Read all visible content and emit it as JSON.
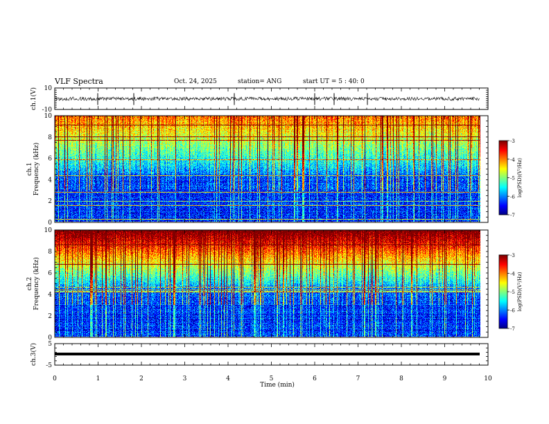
{
  "header": {
    "title": "VLF Spectra",
    "date": "Oct. 24, 2025",
    "station": "station= ANG",
    "start": "start  UT =  5 : 40: 0"
  },
  "chart_data": [
    {
      "id": "ch1",
      "type": "line",
      "ylabel": "ch.1(V)",
      "ylim": [
        -10,
        10
      ],
      "ytick_labels": [
        "10",
        "-10"
      ]
    },
    {
      "id": "ch1-spectrogram",
      "type": "heatmap",
      "ylabel_line1": "ch.1",
      "ylabel_line2": "Frequency (kHz)",
      "ylim": [
        0,
        10
      ],
      "ytick_labels": [
        "0",
        "2",
        "4",
        "6",
        "8",
        "10"
      ],
      "colorbar": {
        "label": "log(PSD)(V²/Hz)",
        "range": [
          -7,
          -3
        ],
        "tick_labels": [
          "-3",
          "-4",
          "-5",
          "-6",
          "-7"
        ]
      }
    },
    {
      "id": "ch2-spectrogram",
      "type": "heatmap",
      "ylabel_line1": "ch.2",
      "ylabel_line2": "Frequency (kHz)",
      "ylim": [
        0,
        10
      ],
      "ytick_labels": [
        "0",
        "2",
        "4",
        "6",
        "8",
        "10"
      ],
      "colorbar": {
        "label": "log(PSD)(V²/Hz)",
        "range": [
          -7,
          -3
        ],
        "tick_labels": [
          "-3",
          "-4",
          "-5",
          "-6",
          "-7"
        ]
      }
    },
    {
      "id": "ch3",
      "type": "line",
      "ylabel": "ch.3(V)",
      "ylim": [
        -5,
        5
      ],
      "ytick_labels": [
        "5",
        "-5"
      ],
      "xlabel": "Time (min)",
      "xlim": [
        0,
        10
      ],
      "xtick_labels": [
        "0",
        "1",
        "2",
        "3",
        "4",
        "5",
        "6",
        "7",
        "8",
        "9",
        "10"
      ]
    }
  ]
}
